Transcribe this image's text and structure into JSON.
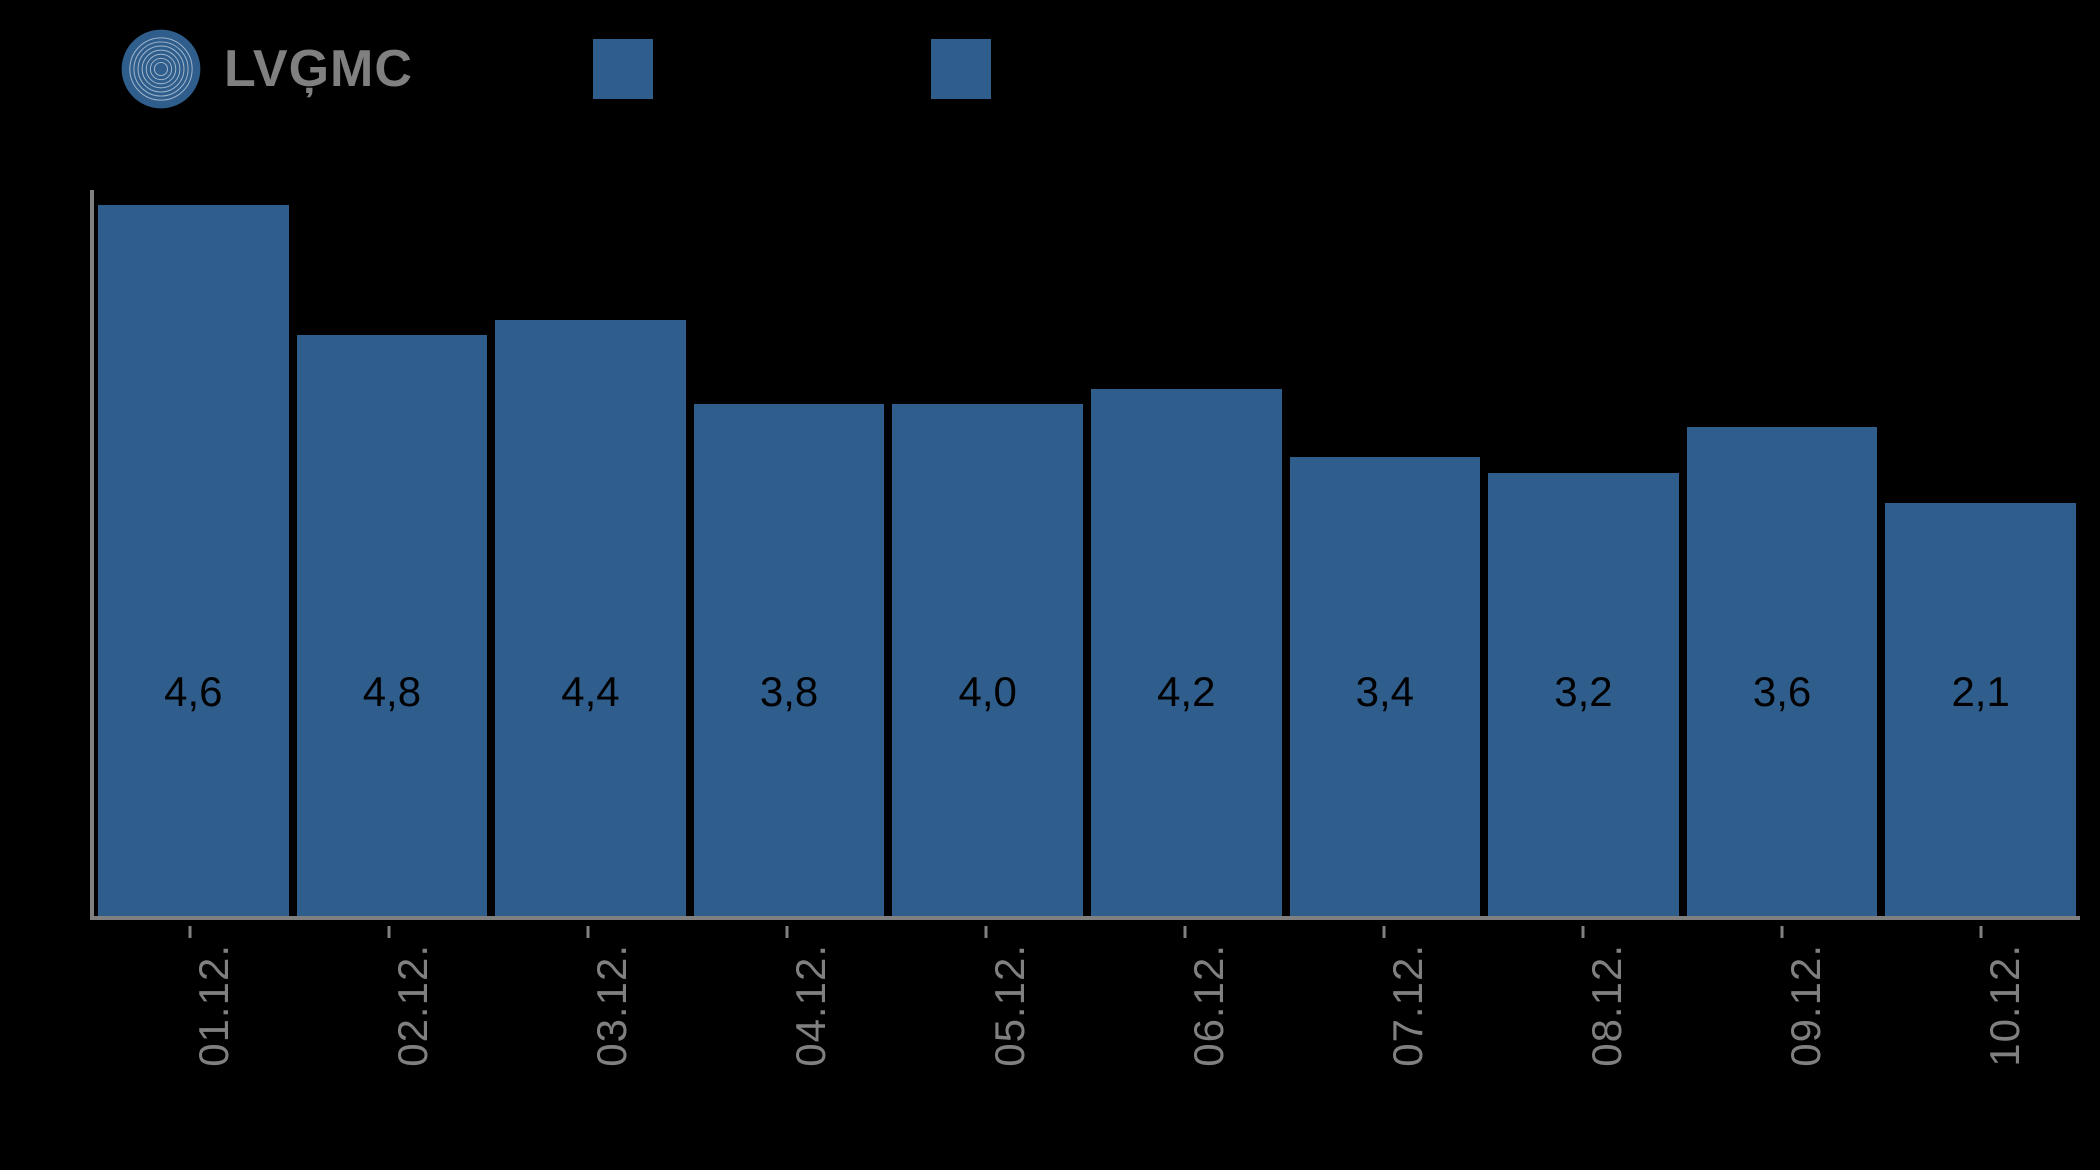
{
  "logo": {
    "text": "LVĢMC",
    "ring_color": "#2f5d8c",
    "inner_color": "#ffffff",
    "text_color": "#808080"
  },
  "legend": {
    "items": [
      {
        "label": "",
        "color": "#2f5d8c"
      },
      {
        "label": "",
        "color": "#2f5d8c"
      }
    ]
  },
  "chart": {
    "type": "bar",
    "background_color": "#000000",
    "axis_color": "#808080",
    "ylim": [
      0,
      9.5
    ],
    "bar_color": "#2f5d8c",
    "bar_width_pct": 96,
    "value_label_color": "#000000",
    "value_label_fontsize": 42,
    "xlabel_color": "#808080",
    "xlabel_fontsize": 42,
    "xlabel_rotation_deg": -90,
    "categories": [
      "01.12.",
      "02.12.",
      "03.12.",
      "04.12.",
      "05.12.",
      "06.12.",
      "07.12.",
      "08.12.",
      "09.12.",
      "10.12."
    ],
    "values": [
      9.3,
      7.6,
      7.8,
      6.7,
      6.7,
      6.9,
      6.0,
      5.8,
      6.4,
      5.4
    ],
    "value_labels": [
      "4,6",
      "4,8",
      "4,4",
      "3,8",
      "4,0",
      "4,2",
      "3,4",
      "3,2",
      "3,6",
      "2,1"
    ]
  }
}
